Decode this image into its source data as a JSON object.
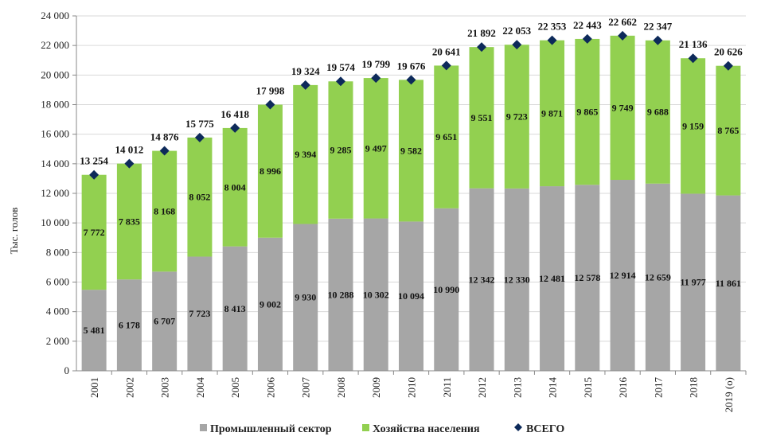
{
  "chart_data": {
    "type": "bar",
    "stacked": true,
    "ylabel": "Тыс. голов",
    "xlabel": "",
    "ylim": [
      0,
      24000
    ],
    "yticks": [
      0,
      2000,
      4000,
      6000,
      8000,
      10000,
      12000,
      14000,
      16000,
      18000,
      20000,
      22000,
      24000
    ],
    "ytick_labels": [
      "0",
      "2 000",
      "4 000",
      "6 000",
      "8 000",
      "10 000",
      "12 000",
      "14 000",
      "16 000",
      "18 000",
      "20 000",
      "22 000",
      "24 000"
    ],
    "grid": true,
    "legend_position": "bottom",
    "categories": [
      "2001",
      "2002",
      "2003",
      "2004",
      "2005",
      "2006",
      "2007",
      "2008",
      "2009",
      "2010",
      "2011",
      "2012",
      "2013",
      "2014",
      "2015",
      "2016",
      "2017",
      "2018",
      "2019 (о)"
    ],
    "series": [
      {
        "name": "Промышленный сектор",
        "kind": "bar",
        "color": "#a6a6a6",
        "values": [
          5481,
          6178,
          6707,
          7723,
          8413,
          9002,
          9930,
          10288,
          10302,
          10094,
          10990,
          12342,
          12330,
          12481,
          12578,
          12914,
          12659,
          11977,
          11861
        ],
        "labels": [
          "5 481",
          "6 178",
          "6 707",
          "7 723",
          "8 413",
          "9 002",
          "9 930",
          "10 288",
          "10 302",
          "10 094",
          "10 990",
          "12 342",
          "12 330",
          "12 481",
          "12 578",
          "12 914",
          "12 659",
          "11 977",
          "11 861"
        ]
      },
      {
        "name": "Хозяйства населения",
        "kind": "bar",
        "color": "#92d050",
        "values": [
          7772,
          7835,
          8168,
          8052,
          8004,
          8996,
          9394,
          9285,
          9497,
          9582,
          9651,
          9551,
          9723,
          9871,
          9865,
          9749,
          9688,
          9159,
          8765
        ],
        "labels": [
          "7 772",
          "7 835",
          "8 168",
          "8 052",
          "8 004",
          "8 996",
          "9 394",
          "9 285",
          "9 497",
          "9 582",
          "9 651",
          "9 551",
          "9 723",
          "9 871",
          "9 865",
          "9 749",
          "9 688",
          "9 159",
          "8 765"
        ]
      },
      {
        "name": "ВСЕГО",
        "kind": "marker",
        "marker": "diamond",
        "color": "#0d2a5a",
        "values": [
          13254,
          14012,
          14876,
          15775,
          16418,
          17998,
          19324,
          19574,
          19799,
          19676,
          20641,
          21892,
          22053,
          22353,
          22443,
          22662,
          22347,
          21136,
          20626
        ],
        "labels": [
          "13 254",
          "14 012",
          "14 876",
          "15 775",
          "16 418",
          "17 998",
          "19 324",
          "19 574",
          "19 799",
          "19 676",
          "20 641",
          "21 892",
          "22 053",
          "22 353",
          "22 443",
          "22 662",
          "22 347",
          "21 136",
          "20 626"
        ]
      }
    ]
  }
}
